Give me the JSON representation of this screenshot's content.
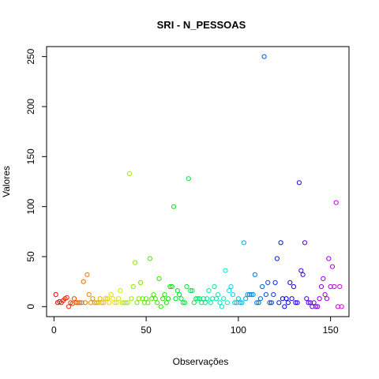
{
  "chart_data": {
    "type": "scatter",
    "title": "SRI - N_PESSOAS",
    "xlabel": "Observações",
    "ylabel": "Valores",
    "xlim": [
      -4,
      160
    ],
    "ylim": [
      -10,
      260
    ],
    "xticks": [
      0,
      50,
      100,
      150
    ],
    "yticks": [
      0,
      50,
      100,
      150,
      200,
      250
    ],
    "grid": false,
    "marker": "open-circle",
    "palette": "rainbow",
    "x": [
      1,
      2,
      3,
      4,
      5,
      6,
      7,
      8,
      9,
      10,
      11,
      12,
      13,
      14,
      15,
      16,
      17,
      18,
      19,
      20,
      21,
      22,
      23,
      24,
      25,
      26,
      27,
      28,
      29,
      30,
      31,
      32,
      33,
      34,
      35,
      36,
      37,
      38,
      39,
      40,
      41,
      42,
      43,
      44,
      45,
      46,
      47,
      48,
      49,
      50,
      51,
      52,
      53,
      54,
      55,
      56,
      57,
      58,
      59,
      60,
      61,
      62,
      63,
      64,
      65,
      66,
      67,
      68,
      69,
      70,
      71,
      72,
      73,
      74,
      75,
      76,
      77,
      78,
      79,
      80,
      81,
      82,
      83,
      84,
      85,
      86,
      87,
      88,
      89,
      90,
      91,
      92,
      93,
      94,
      95,
      96,
      97,
      98,
      99,
      100,
      101,
      102,
      103,
      104,
      105,
      106,
      107,
      108,
      109,
      110,
      111,
      112,
      113,
      114,
      115,
      116,
      117,
      118,
      119,
      120,
      121,
      122,
      123,
      124,
      125,
      126,
      127,
      128,
      129,
      130,
      131,
      132,
      133,
      134,
      135,
      136,
      137,
      138,
      139,
      140,
      141,
      142,
      143,
      144,
      145,
      146,
      147,
      148,
      149,
      150,
      151,
      152,
      153,
      154,
      155,
      156
    ],
    "values": [
      12,
      4,
      5,
      4,
      6,
      8,
      9,
      0,
      4,
      3,
      8,
      4,
      4,
      4,
      4,
      25,
      4,
      32,
      12,
      4,
      8,
      4,
      4,
      4,
      8,
      4,
      4,
      8,
      8,
      4,
      12,
      8,
      4,
      4,
      8,
      16,
      4,
      4,
      4,
      4,
      133,
      8,
      20,
      44,
      4,
      8,
      24,
      8,
      4,
      8,
      4,
      48,
      8,
      12,
      8,
      4,
      28,
      0,
      8,
      12,
      4,
      8,
      20,
      20,
      100,
      8,
      16,
      12,
      8,
      4,
      4,
      20,
      128,
      16,
      16,
      4,
      8,
      8,
      8,
      4,
      8,
      4,
      8,
      16,
      4,
      8,
      20,
      8,
      12,
      4,
      0,
      8,
      36,
      4,
      16,
      20,
      12,
      4,
      4,
      8,
      4,
      4,
      64,
      8,
      12,
      12,
      12,
      12,
      32,
      4,
      4,
      8,
      20,
      250,
      12,
      24,
      4,
      4,
      12,
      24,
      48,
      4,
      64,
      8,
      0,
      8,
      4,
      24,
      8,
      20,
      4,
      4,
      124,
      36,
      32,
      64,
      8,
      4,
      4,
      0,
      4,
      0,
      0,
      8,
      20,
      28,
      12,
      8,
      48,
      20,
      40,
      20,
      104,
      0,
      20,
      0
    ]
  }
}
